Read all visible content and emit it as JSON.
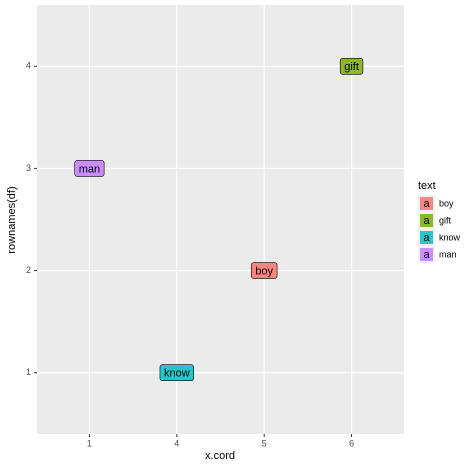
{
  "chart_data": {
    "type": "label",
    "x_label": "x.cord",
    "y_label": "rownames(df)",
    "x_categories": [
      "1",
      "4",
      "5",
      "6"
    ],
    "ylim": [
      0.4,
      4.6
    ],
    "yticks": [
      1,
      2,
      3,
      4
    ],
    "grid": true,
    "legend_title": "text",
    "legend_key_glyph": "a",
    "legend_position": "right",
    "series": [
      {
        "name": "boy",
        "color": "#F8766D",
        "x": "5",
        "y": 2
      },
      {
        "name": "gift",
        "color": "#7CAE00",
        "x": "6",
        "y": 4
      },
      {
        "name": "know",
        "color": "#00BFC4",
        "x": "4",
        "y": 1
      },
      {
        "name": "man",
        "color": "#C77CFF",
        "x": "1",
        "y": 3
      }
    ]
  }
}
